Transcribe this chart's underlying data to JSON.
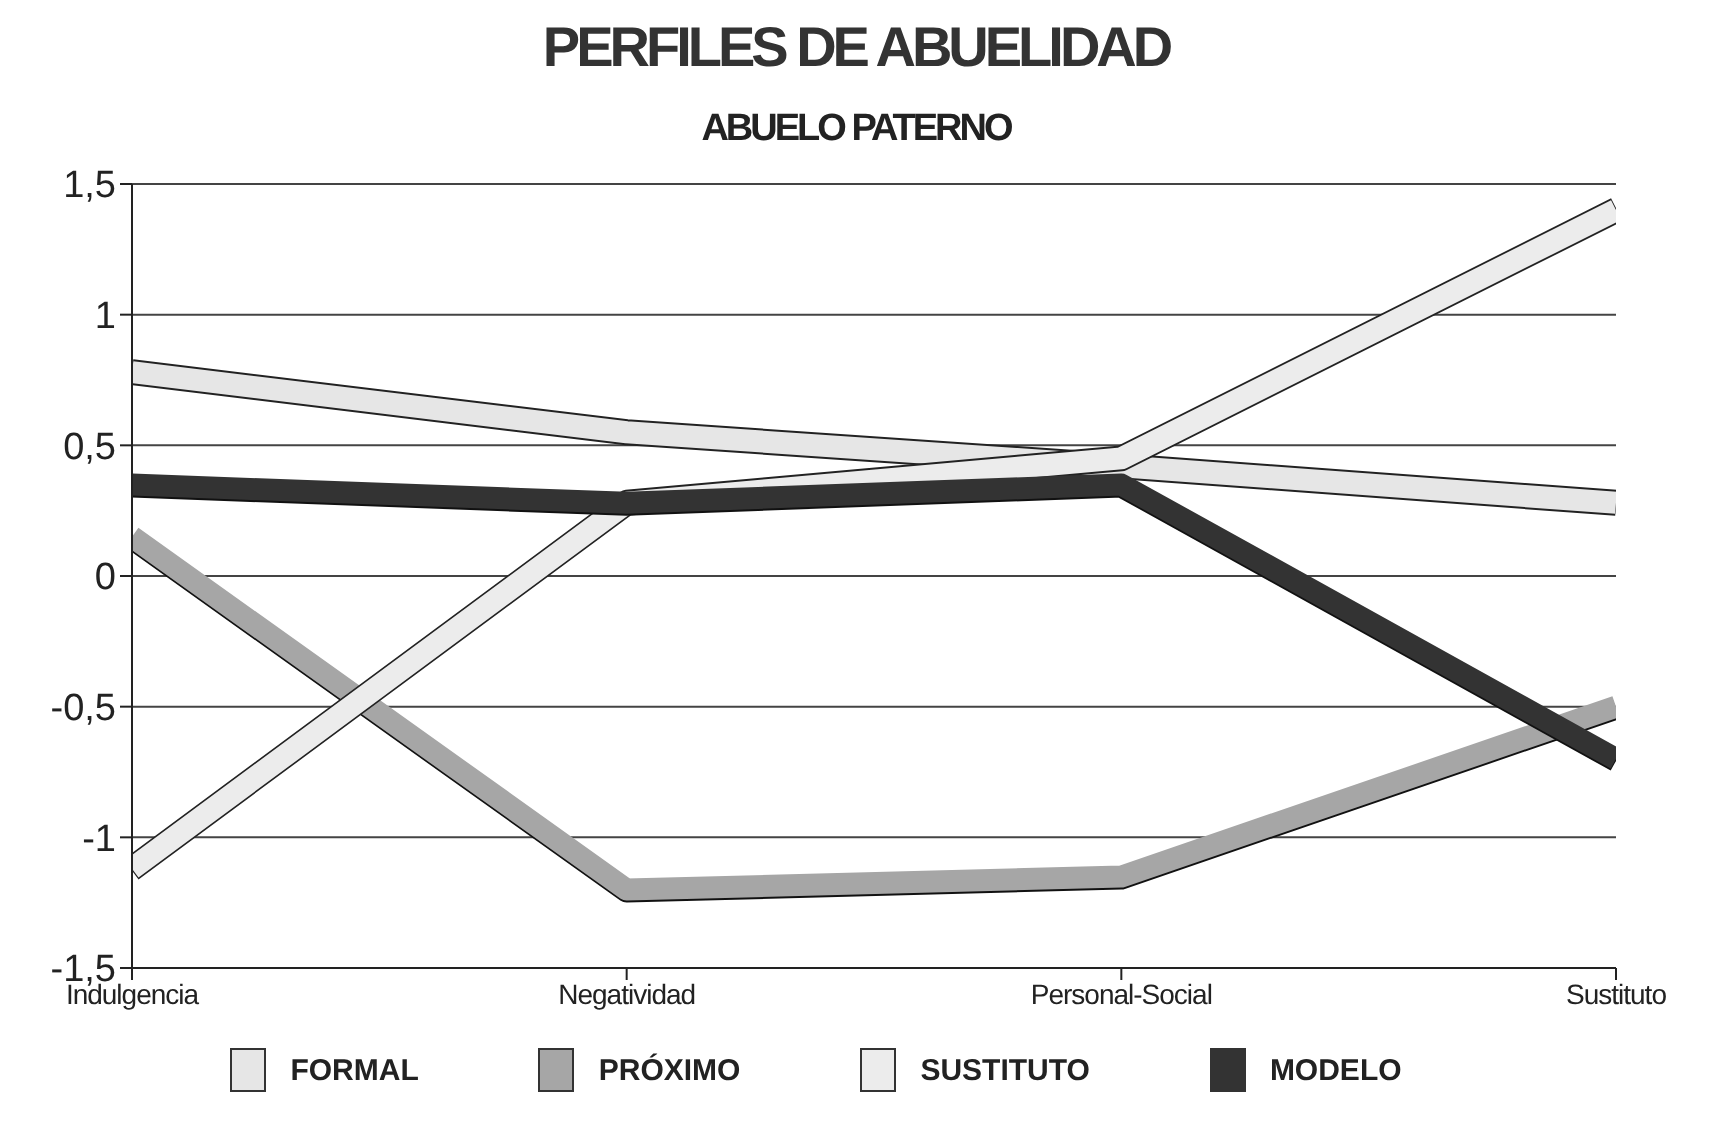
{
  "chart_data": {
    "type": "line",
    "title": "PERFILES DE ABUELIDAD",
    "subtitle": "ABUELO PATERNO",
    "categories": [
      "Indulgencia",
      "Negatividad",
      "Personal-Social",
      "Sustituto"
    ],
    "series": [
      {
        "name": "FORMAL",
        "color": "#e6e6e6",
        "values": [
          0.78,
          0.55,
          0.42,
          0.28
        ]
      },
      {
        "name": "PRÓXIMO",
        "color": "#a6a6a6",
        "values": [
          0.15,
          -1.2,
          -1.15,
          -0.5
        ]
      },
      {
        "name": "SUSTITUTO",
        "color": "#ececec",
        "values": [
          -1.12,
          0.28,
          0.45,
          1.4
        ]
      },
      {
        "name": "MODELO",
        "color": "#333333",
        "values": [
          0.35,
          0.28,
          0.35,
          -0.7
        ]
      }
    ],
    "ylim": [
      -1.5,
      1.5
    ],
    "yticks": [
      {
        "value": -1.5,
        "label": "-1,5"
      },
      {
        "value": -1,
        "label": "-1"
      },
      {
        "value": -0.5,
        "label": "-0,5"
      },
      {
        "value": 0,
        "label": "0"
      },
      {
        "value": 0.5,
        "label": "0,5"
      },
      {
        "value": 1,
        "label": "1"
      },
      {
        "value": 1.5,
        "label": "1,5"
      }
    ],
    "grid": "y",
    "legend": "bottom",
    "marker": "none",
    "line_style": "solid"
  }
}
